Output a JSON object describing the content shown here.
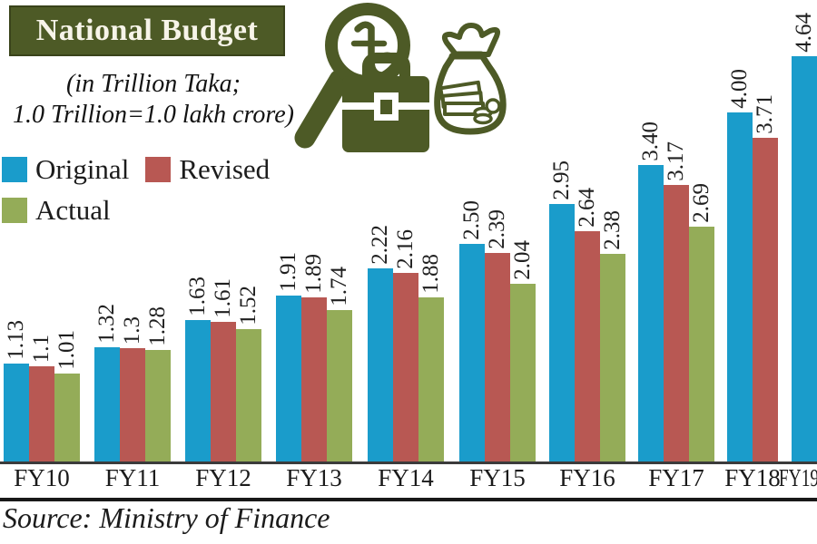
{
  "title": "National Budget",
  "subtitle": {
    "line1": "(in Trillion Taka;",
    "line2": "1.0 Trillion=1.0 lakh crore)"
  },
  "source": "Source: Ministry of Finance",
  "colors": {
    "olive": "#4d5a26",
    "blue": "#1a9ccb",
    "red": "#b85853",
    "green": "#94ac58",
    "ink": "#1e1e1e"
  },
  "legend": {
    "items": [
      {
        "label": "Original",
        "color": "#1a9ccb"
      },
      {
        "label": "Revised",
        "color": "#b85853"
      },
      {
        "label": "Actual",
        "color": "#94ac58"
      }
    ]
  },
  "icons": [
    "magnifier-taka-icon",
    "briefcase-icon",
    "money-bag-icon"
  ],
  "chart_data": {
    "type": "bar",
    "title": "National Budget",
    "unit": "Trillion Taka",
    "categories": [
      "FY10",
      "FY11",
      "FY12",
      "FY13",
      "FY14",
      "FY15",
      "FY16",
      "FY17",
      "FY18",
      "FY19"
    ],
    "series": [
      {
        "name": "Original",
        "color": "#1a9ccb",
        "values": [
          1.13,
          1.32,
          1.63,
          1.91,
          2.22,
          2.5,
          2.95,
          3.4,
          4.0,
          4.64
        ],
        "labels": [
          "1.13",
          "1.32",
          "1.63",
          "1.91",
          "2.22",
          "2.50",
          "2.95",
          "3.40",
          "4.00",
          "4.64"
        ]
      },
      {
        "name": "Revised",
        "color": "#b85853",
        "values": [
          1.1,
          1.3,
          1.61,
          1.89,
          2.16,
          2.39,
          2.64,
          3.17,
          3.71,
          null
        ],
        "labels": [
          "1.1",
          "1.3",
          "1.61",
          "1.89",
          "2.16",
          "2.39",
          "2.64",
          "3.17",
          "3.71",
          null
        ]
      },
      {
        "name": "Actual",
        "color": "#94ac58",
        "values": [
          1.01,
          1.28,
          1.52,
          1.74,
          1.88,
          2.04,
          2.38,
          2.69,
          null,
          null
        ],
        "labels": [
          "1.01",
          "1.28",
          "1.52",
          "1.74",
          "1.88",
          "2.04",
          "2.38",
          "2.69",
          null,
          null
        ]
      }
    ],
    "ylim": [
      0,
      4.64
    ],
    "grid": false,
    "legend_position": "upper-left",
    "value_label_rotation": -90
  }
}
